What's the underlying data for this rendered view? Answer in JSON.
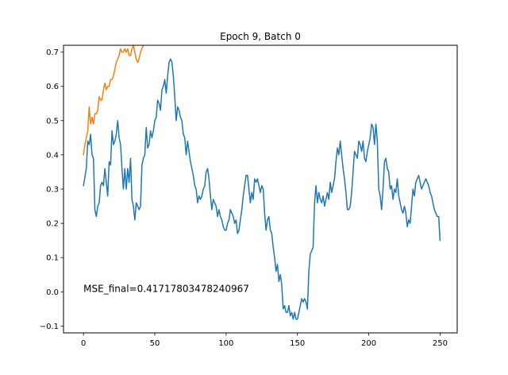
{
  "chart_data": {
    "type": "line",
    "title": "Epoch 9, Batch 0",
    "xlabel": "",
    "ylabel": "",
    "xlim": [
      -14,
      262
    ],
    "ylim": [
      -0.12,
      0.72
    ],
    "x_ticks": [
      0,
      50,
      100,
      150,
      200,
      250
    ],
    "x_tick_labels": [
      "0",
      "50",
      "100",
      "150",
      "200",
      "250"
    ],
    "y_ticks": [
      -0.1,
      0.0,
      0.1,
      0.2,
      0.3,
      0.4,
      0.5,
      0.6,
      0.7
    ],
    "y_tick_labels": [
      "−0.1",
      "0.0",
      "0.1",
      "0.2",
      "0.3",
      "0.4",
      "0.5",
      "0.6",
      "0.7"
    ],
    "grid": false,
    "legend": "none",
    "annotation": {
      "text": "MSE_final=0.41717803478240967",
      "x": 0,
      "y": 0.0
    },
    "series": [
      {
        "color": "#1f77b4",
        "points": [
          [
            0,
            0.31
          ],
          [
            2,
            0.36
          ],
          [
            3,
            0.44
          ],
          [
            4,
            0.43
          ],
          [
            5,
            0.46
          ],
          [
            6,
            0.4
          ],
          [
            7,
            0.39
          ],
          [
            8,
            0.24
          ],
          [
            9,
            0.22
          ],
          [
            10,
            0.25
          ],
          [
            11,
            0.26
          ],
          [
            12,
            0.31
          ],
          [
            13,
            0.32
          ],
          [
            14,
            0.31
          ],
          [
            15,
            0.36
          ],
          [
            16,
            0.32
          ],
          [
            17,
            0.28
          ],
          [
            18,
            0.38
          ],
          [
            19,
            0.37
          ],
          [
            20,
            0.47
          ],
          [
            21,
            0.43
          ],
          [
            22,
            0.44
          ],
          [
            23,
            0.46
          ],
          [
            24,
            0.5
          ],
          [
            25,
            0.45
          ],
          [
            26,
            0.43
          ],
          [
            27,
            0.36
          ],
          [
            28,
            0.3
          ],
          [
            29,
            0.36
          ],
          [
            30,
            0.3
          ],
          [
            31,
            0.36
          ],
          [
            32,
            0.32
          ],
          [
            33,
            0.39
          ],
          [
            34,
            0.27
          ],
          [
            35,
            0.25
          ],
          [
            36,
            0.21
          ],
          [
            37,
            0.26
          ],
          [
            38,
            0.25
          ],
          [
            39,
            0.24
          ],
          [
            40,
            0.25
          ],
          [
            41,
            0.37
          ],
          [
            42,
            0.39
          ],
          [
            43,
            0.4
          ],
          [
            44,
            0.48
          ],
          [
            45,
            0.42
          ],
          [
            46,
            0.43
          ],
          [
            47,
            0.47
          ],
          [
            48,
            0.45
          ],
          [
            49,
            0.47
          ],
          [
            50,
            0.5
          ],
          [
            51,
            0.51
          ],
          [
            52,
            0.56
          ],
          [
            53,
            0.55
          ],
          [
            54,
            0.53
          ],
          [
            55,
            0.59
          ],
          [
            56,
            0.6
          ],
          [
            57,
            0.62
          ],
          [
            58,
            0.58
          ],
          [
            59,
            0.63
          ],
          [
            60,
            0.67
          ],
          [
            61,
            0.68
          ],
          [
            62,
            0.67
          ],
          [
            63,
            0.63
          ],
          [
            64,
            0.57
          ],
          [
            65,
            0.5
          ],
          [
            66,
            0.54
          ],
          [
            67,
            0.53
          ],
          [
            68,
            0.51
          ],
          [
            69,
            0.5
          ],
          [
            70,
            0.46
          ],
          [
            71,
            0.45
          ],
          [
            72,
            0.4
          ],
          [
            73,
            0.44
          ],
          [
            74,
            0.41
          ],
          [
            75,
            0.38
          ],
          [
            76,
            0.36
          ],
          [
            77,
            0.34
          ],
          [
            78,
            0.31
          ],
          [
            79,
            0.3
          ],
          [
            80,
            0.26
          ],
          [
            81,
            0.28
          ],
          [
            82,
            0.27
          ],
          [
            83,
            0.28
          ],
          [
            84,
            0.3
          ],
          [
            85,
            0.31
          ],
          [
            86,
            0.35
          ],
          [
            87,
            0.36
          ],
          [
            88,
            0.33
          ],
          [
            89,
            0.28
          ],
          [
            90,
            0.24
          ],
          [
            91,
            0.27
          ],
          [
            92,
            0.26
          ],
          [
            93,
            0.25
          ],
          [
            94,
            0.22
          ],
          [
            95,
            0.24
          ],
          [
            96,
            0.22
          ],
          [
            97,
            0.21
          ],
          [
            98,
            0.19
          ],
          [
            99,
            0.18
          ],
          [
            100,
            0.18
          ],
          [
            101,
            0.2
          ],
          [
            102,
            0.21
          ],
          [
            103,
            0.24
          ],
          [
            104,
            0.23
          ],
          [
            105,
            0.22
          ],
          [
            106,
            0.2
          ],
          [
            107,
            0.21
          ],
          [
            108,
            0.17
          ],
          [
            109,
            0.18
          ],
          [
            110,
            0.21
          ],
          [
            111,
            0.24
          ],
          [
            112,
            0.28
          ],
          [
            113,
            0.31
          ],
          [
            114,
            0.34
          ],
          [
            115,
            0.34
          ],
          [
            116,
            0.3
          ],
          [
            117,
            0.26
          ],
          [
            118,
            0.29
          ],
          [
            119,
            0.27
          ],
          [
            120,
            0.33
          ],
          [
            121,
            0.32
          ],
          [
            122,
            0.33
          ],
          [
            123,
            0.31
          ],
          [
            124,
            0.29
          ],
          [
            125,
            0.31
          ],
          [
            126,
            0.3
          ],
          [
            127,
            0.23
          ],
          [
            128,
            0.18
          ],
          [
            129,
            0.21
          ],
          [
            130,
            0.22
          ],
          [
            131,
            0.18
          ],
          [
            132,
            0.17
          ],
          [
            133,
            0.13
          ],
          [
            134,
            0.1
          ],
          [
            135,
            0.06
          ],
          [
            136,
            0.08
          ],
          [
            137,
            0.03
          ],
          [
            138,
            0.05
          ],
          [
            139,
            0.02
          ],
          [
            140,
            -0.05
          ],
          [
            141,
            -0.04
          ],
          [
            142,
            -0.06
          ],
          [
            143,
            -0.06
          ],
          [
            144,
            -0.04
          ],
          [
            145,
            -0.07
          ],
          [
            146,
            -0.06
          ],
          [
            147,
            -0.08
          ],
          [
            148,
            -0.06
          ],
          [
            149,
            -0.08
          ],
          [
            150,
            -0.08
          ],
          [
            151,
            -0.06
          ],
          [
            152,
            -0.04
          ],
          [
            153,
            -0.02
          ],
          [
            154,
            -0.03
          ],
          [
            155,
            -0.02
          ],
          [
            156,
            -0.03
          ],
          [
            157,
            -0.05
          ],
          [
            158,
            0.06
          ],
          [
            159,
            0.11
          ],
          [
            160,
            0.12
          ],
          [
            161,
            0.13
          ],
          [
            162,
            0.26
          ],
          [
            163,
            0.31
          ],
          [
            164,
            0.26
          ],
          [
            165,
            0.29
          ],
          [
            166,
            0.27
          ],
          [
            167,
            0.26
          ],
          [
            168,
            0.28
          ],
          [
            169,
            0.25
          ],
          [
            170,
            0.27
          ],
          [
            171,
            0.29
          ],
          [
            172,
            0.27
          ],
          [
            173,
            0.32
          ],
          [
            174,
            0.29
          ],
          [
            175,
            0.31
          ],
          [
            176,
            0.33
          ],
          [
            177,
            0.38
          ],
          [
            178,
            0.42
          ],
          [
            179,
            0.4
          ],
          [
            180,
            0.44
          ],
          [
            181,
            0.4
          ],
          [
            182,
            0.36
          ],
          [
            183,
            0.33
          ],
          [
            184,
            0.29
          ],
          [
            185,
            0.24
          ],
          [
            186,
            0.24
          ],
          [
            187,
            0.25
          ],
          [
            188,
            0.29
          ],
          [
            189,
            0.35
          ],
          [
            190,
            0.41
          ],
          [
            191,
            0.4
          ],
          [
            192,
            0.39
          ],
          [
            193,
            0.44
          ],
          [
            194,
            0.43
          ],
          [
            195,
            0.41
          ],
          [
            196,
            0.44
          ],
          [
            197,
            0.39
          ],
          [
            198,
            0.38
          ],
          [
            199,
            0.41
          ],
          [
            200,
            0.43
          ],
          [
            201,
            0.45
          ],
          [
            202,
            0.49
          ],
          [
            203,
            0.48
          ],
          [
            204,
            0.43
          ],
          [
            205,
            0.49
          ],
          [
            206,
            0.44
          ],
          [
            207,
            0.3
          ],
          [
            208,
            0.28
          ],
          [
            209,
            0.24
          ],
          [
            210,
            0.3
          ],
          [
            211,
            0.38
          ],
          [
            212,
            0.39
          ],
          [
            213,
            0.36
          ],
          [
            214,
            0.35
          ],
          [
            215,
            0.3
          ],
          [
            216,
            0.31
          ],
          [
            217,
            0.27
          ],
          [
            218,
            0.3
          ],
          [
            219,
            0.29
          ],
          [
            220,
            0.33
          ],
          [
            221,
            0.28
          ],
          [
            222,
            0.26
          ],
          [
            223,
            0.24
          ],
          [
            224,
            0.23
          ],
          [
            225,
            0.25
          ],
          [
            226,
            0.23
          ],
          [
            227,
            0.19
          ],
          [
            228,
            0.21
          ],
          [
            229,
            0.2
          ],
          [
            230,
            0.25
          ],
          [
            231,
            0.3
          ],
          [
            232,
            0.28
          ],
          [
            233,
            0.32
          ],
          [
            234,
            0.33
          ],
          [
            235,
            0.34
          ],
          [
            236,
            0.32
          ],
          [
            237,
            0.3
          ],
          [
            238,
            0.31
          ],
          [
            239,
            0.32
          ],
          [
            240,
            0.33
          ],
          [
            241,
            0.32
          ],
          [
            242,
            0.31
          ],
          [
            243,
            0.29
          ],
          [
            244,
            0.28
          ],
          [
            245,
            0.26
          ],
          [
            246,
            0.24
          ],
          [
            247,
            0.23
          ],
          [
            248,
            0.22
          ],
          [
            249,
            0.22
          ],
          [
            250,
            0.15
          ]
        ]
      },
      {
        "color": "#ff7f0e",
        "points": [
          [
            0,
            0.4
          ],
          [
            1,
            0.43
          ],
          [
            2,
            0.45
          ],
          [
            3,
            0.47
          ],
          [
            4,
            0.54
          ],
          [
            5,
            0.49
          ],
          [
            6,
            0.51
          ],
          [
            7,
            0.49
          ],
          [
            8,
            0.52
          ],
          [
            9,
            0.52
          ],
          [
            10,
            0.53
          ],
          [
            11,
            0.57
          ],
          [
            12,
            0.56
          ],
          [
            13,
            0.56
          ],
          [
            14,
            0.59
          ],
          [
            15,
            0.61
          ],
          [
            16,
            0.59
          ],
          [
            17,
            0.6
          ],
          [
            18,
            0.6
          ],
          [
            19,
            0.62
          ],
          [
            20,
            0.62
          ],
          [
            21,
            0.63
          ],
          [
            22,
            0.65
          ],
          [
            23,
            0.67
          ],
          [
            24,
            0.68
          ],
          [
            25,
            0.69
          ],
          [
            26,
            0.71
          ],
          [
            27,
            0.7
          ],
          [
            28,
            0.7
          ],
          [
            29,
            0.71
          ],
          [
            30,
            0.7
          ],
          [
            31,
            0.71
          ],
          [
            32,
            0.69
          ],
          [
            33,
            0.69
          ],
          [
            34,
            0.71
          ],
          [
            35,
            0.72
          ],
          [
            36,
            0.7
          ],
          [
            37,
            0.68
          ],
          [
            38,
            0.67
          ],
          [
            39,
            0.68
          ],
          [
            40,
            0.7
          ],
          [
            41,
            0.71
          ],
          [
            42,
            0.72
          ],
          [
            44,
            0.73
          ]
        ]
      }
    ]
  }
}
